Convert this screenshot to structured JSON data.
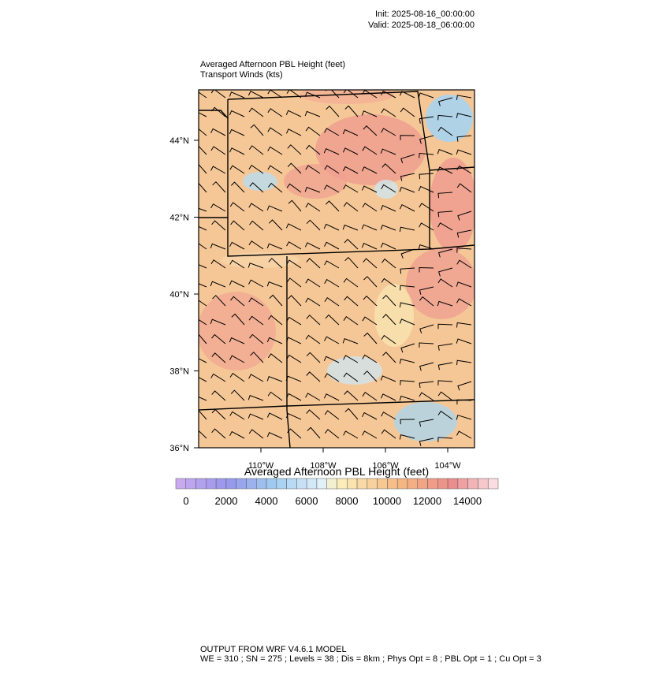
{
  "header": {
    "init": "Init: 2025-08-16_00:00:00",
    "valid": "Valid: 2025-08-18_06:00:00"
  },
  "titles": {
    "main": "Averaged Afternoon PBL Height   (feet)",
    "sub": "Transport Winds   (kts)"
  },
  "map": {
    "lat_labels": [
      "44°N",
      "42°N",
      "40°N",
      "38°N",
      "36°N"
    ],
    "lon_labels": [
      "110°W",
      "108°W",
      "106°W",
      "104°W"
    ]
  },
  "colorbar": {
    "title": "Averaged Afternoon PBL Height  (feet)",
    "labels": [
      "0",
      "2000",
      "4000",
      "6000",
      "8000",
      "10000",
      "12000",
      "14000"
    ]
  },
  "footer": {
    "line1": "OUTPUT FROM WRF V4.6.1 MODEL",
    "line2": "WE = 310 ; SN = 275 ; Levels = 38 ; Dis = 8km ; Phys Opt = 8 ; PBL Opt = 1 ; Cu Opt = 3"
  }
}
